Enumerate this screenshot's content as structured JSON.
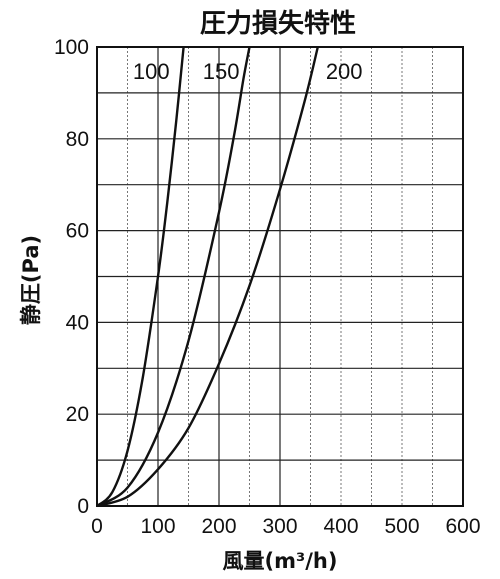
{
  "chart_data": {
    "type": "line",
    "title": "圧力損失特性",
    "xlabel": "風量(m³/h)",
    "ylabel": "静圧(Pa)",
    "xlim": [
      0,
      600
    ],
    "ylim": [
      0,
      100
    ],
    "x_ticks": [
      0,
      100,
      200,
      300,
      400,
      500,
      600
    ],
    "y_ticks": [
      0,
      20,
      40,
      60,
      80,
      100
    ],
    "x_ticks_labels": [
      "0",
      "100",
      "200",
      "300",
      "400",
      "500",
      "600"
    ],
    "y_ticks_labels": [
      "0",
      "20",
      "40",
      "60",
      "80",
      "100"
    ],
    "grid": true,
    "legend": "inline-labels-top",
    "series": [
      {
        "name": "100",
        "x": [
          0,
          25,
          50,
          75,
          100,
          115,
          130,
          142
        ],
        "y": [
          0,
          3,
          12,
          28,
          50,
          66,
          84,
          100
        ]
      },
      {
        "name": "150",
        "x": [
          0,
          50,
          100,
          150,
          200,
          225,
          240,
          250
        ],
        "y": [
          0,
          4,
          16,
          36,
          64,
          81,
          93,
          100
        ]
      },
      {
        "name": "200",
        "x": [
          0,
          50,
          100,
          150,
          200,
          250,
          300,
          340,
          362
        ],
        "y": [
          0,
          2,
          8,
          17,
          31,
          48,
          69,
          88,
          100
        ]
      }
    ]
  }
}
